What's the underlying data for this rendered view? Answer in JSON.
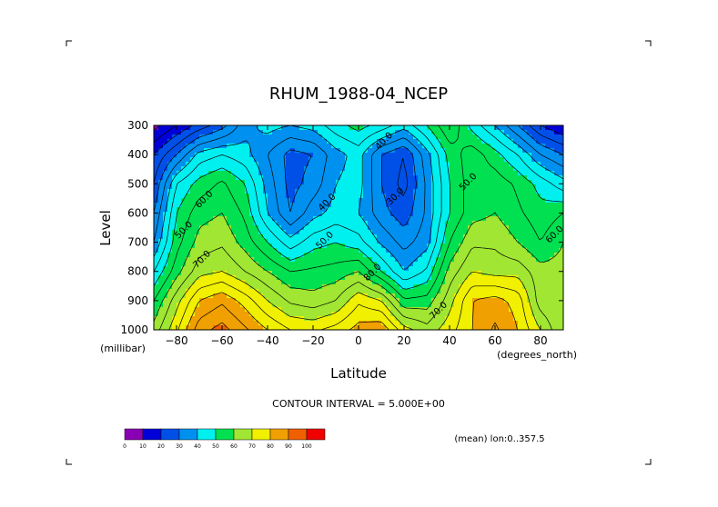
{
  "chart_data": {
    "type": "heatmap",
    "title": "RHUM_1988-04_NCEP",
    "xlabel": "Latitude",
    "ylabel": "Level",
    "x_unit_label": "(degrees_north)",
    "y_unit_label": "(millibar)",
    "xlim": [
      -90,
      90
    ],
    "ylim": [
      1000,
      300
    ],
    "x_ticks": [
      -80,
      -60,
      -40,
      -20,
      0,
      20,
      40,
      60,
      80
    ],
    "x_tick_labels": [
      "−80",
      "−60",
      "−40",
      "−20",
      "0",
      "20",
      "40",
      "60",
      "80"
    ],
    "y_ticks": [
      300,
      400,
      500,
      600,
      700,
      800,
      900,
      1000
    ],
    "y_tick_labels": [
      "300",
      "400",
      "500",
      "600",
      "700",
      "800",
      "900",
      "1000"
    ],
    "contour_interval_text": "CONTOUR INTERVAL = 5.000E+00",
    "mean_note": "(mean) lon:0..357.5",
    "colorbar": {
      "levels": [
        "0",
        "10",
        "20",
        "30",
        "40",
        "50",
        "60",
        "70",
        "80",
        "90",
        "100"
      ],
      "colors": [
        "#8a00b4",
        "#0000d8",
        "#0050e8",
        "#0090f0",
        "#00f0f0",
        "#00e050",
        "#a0e632",
        "#f0f000",
        "#f0a000",
        "#f06000",
        "#f00000"
      ]
    },
    "contour_labels": [
      {
        "text": "40.0",
        "lat": 12,
        "lev": 360
      },
      {
        "text": "30.0",
        "lat": 17,
        "lev": 550
      },
      {
        "text": "40.0",
        "lat": -13,
        "lev": 570
      },
      {
        "text": "50.0",
        "lat": -14,
        "lev": 700
      },
      {
        "text": "50.0",
        "lat": 49,
        "lev": 500
      },
      {
        "text": "50.0",
        "lat": -76,
        "lev": 665
      },
      {
        "text": "60.0",
        "lat": -67,
        "lev": 560
      },
      {
        "text": "70.0",
        "lat": -68,
        "lev": 765
      },
      {
        "text": "80.0",
        "lat": 7,
        "lev": 810
      },
      {
        "text": "70.0",
        "lat": 36,
        "lev": 940
      },
      {
        "text": "60.0",
        "lat": 87,
        "lev": 680
      }
    ],
    "levels_hpa": [
      300,
      400,
      500,
      600,
      700,
      800,
      900,
      1000
    ],
    "latitudes": [
      -90,
      -80,
      -70,
      -60,
      -50,
      -40,
      -30,
      -20,
      -10,
      0,
      10,
      20,
      30,
      40,
      50,
      60,
      70,
      80,
      90
    ],
    "rhum": [
      [
        8,
        15,
        22,
        28,
        38,
        42,
        40,
        42,
        48,
        52,
        48,
        42,
        50,
        60,
        48,
        40,
        30,
        20,
        15
      ],
      [
        20,
        30,
        42,
        45,
        42,
        35,
        28,
        30,
        38,
        42,
        30,
        25,
        38,
        52,
        58,
        52,
        45,
        35,
        30
      ],
      [
        25,
        45,
        52,
        56,
        50,
        38,
        28,
        32,
        40,
        42,
        30,
        23,
        36,
        50,
        58,
        58,
        54,
        48,
        42
      ],
      [
        30,
        50,
        58,
        60,
        54,
        40,
        30,
        38,
        42,
        40,
        32,
        27,
        36,
        50,
        58,
        60,
        56,
        52,
        55
      ],
      [
        35,
        53,
        62,
        64,
        58,
        50,
        42,
        48,
        50,
        47,
        39,
        33,
        38,
        55,
        64,
        64,
        60,
        55,
        60
      ],
      [
        45,
        58,
        68,
        70,
        65,
        60,
        55,
        56,
        57,
        60,
        50,
        40,
        46,
        62,
        70,
        68,
        68,
        62,
        62
      ],
      [
        55,
        68,
        80,
        84,
        78,
        70,
        64,
        62,
        65,
        74,
        70,
        56,
        57,
        68,
        80,
        82,
        78,
        62,
        60
      ],
      [
        62,
        74,
        88,
        92,
        86,
        80,
        75,
        74,
        77,
        82,
        84,
        72,
        67,
        73,
        80,
        86,
        80,
        70,
        60
      ]
    ]
  }
}
